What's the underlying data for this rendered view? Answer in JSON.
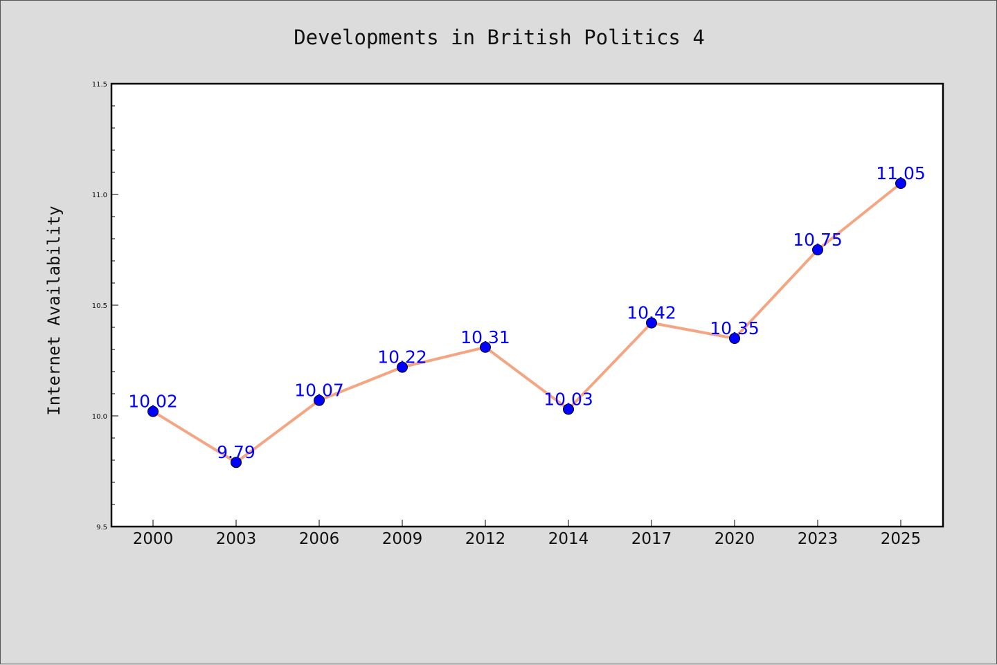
{
  "chart_data": {
    "type": "line",
    "title": "Developments in British Politics 4",
    "xlabel": "",
    "ylabel": "Internet Availability",
    "categories": [
      "2000",
      "2003",
      "2006",
      "2009",
      "2012",
      "2014",
      "2017",
      "2020",
      "2023",
      "2025"
    ],
    "series": [
      {
        "values": [
          10.02,
          9.79,
          10.07,
          10.22,
          10.31,
          10.03,
          10.42,
          10.35,
          10.75,
          11.05
        ]
      }
    ],
    "data_labels": [
      "10.02",
      "9.79",
      "10.07",
      "10.22",
      "10.31",
      "10.03",
      "10.42",
      "10.35",
      "10.75",
      "11.05"
    ],
    "ylim": [
      9.5,
      11.5
    ],
    "yticks": [
      "9.5",
      "10.0",
      "10.5",
      "11.0",
      "11.5"
    ],
    "grid": false,
    "legend": "none",
    "colors": {
      "line": "#f4a582",
      "marker": "#0000ff",
      "label": "#0000ff",
      "background": "#dcdcdc",
      "plot_background": "#ffffff"
    }
  }
}
